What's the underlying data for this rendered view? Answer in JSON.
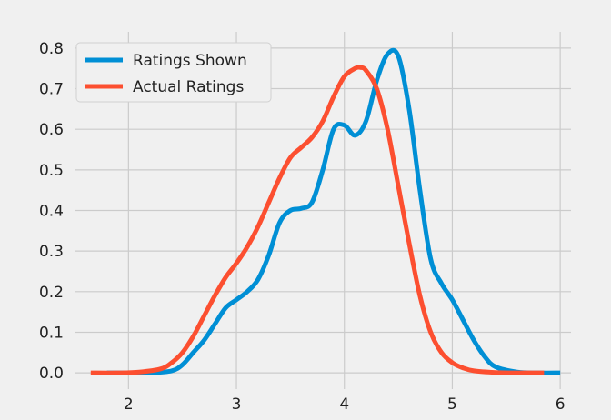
{
  "chart_data": {
    "type": "line",
    "title": "",
    "xlabel": "",
    "ylabel": "",
    "xlim": [
      1.5,
      6.1
    ],
    "ylim": [
      -0.04,
      0.84
    ],
    "xticks": [
      2,
      3,
      4,
      5,
      6
    ],
    "yticks": [
      0.0,
      0.1,
      0.2,
      0.3,
      0.4,
      0.5,
      0.6,
      0.7,
      0.8
    ],
    "grid": true,
    "legend_position": "top-left",
    "series": [
      {
        "name": "Ratings Shown",
        "color": "#008fd5",
        "x": [
          1.8,
          2.0,
          2.2,
          2.4,
          2.5,
          2.6,
          2.7,
          2.8,
          2.9,
          3.0,
          3.1,
          3.2,
          3.3,
          3.4,
          3.5,
          3.6,
          3.7,
          3.8,
          3.9,
          4.0,
          4.1,
          4.2,
          4.3,
          4.4,
          4.5,
          4.6,
          4.7,
          4.8,
          4.9,
          5.0,
          5.1,
          5.2,
          5.3,
          5.4,
          5.6,
          5.8,
          6.0
        ],
        "y": [
          0.0,
          0.0,
          0.0,
          0.005,
          0.02,
          0.05,
          0.08,
          0.12,
          0.16,
          0.18,
          0.2,
          0.23,
          0.29,
          0.37,
          0.4,
          0.405,
          0.42,
          0.5,
          0.6,
          0.61,
          0.585,
          0.62,
          0.72,
          0.785,
          0.78,
          0.65,
          0.45,
          0.28,
          0.22,
          0.18,
          0.13,
          0.08,
          0.04,
          0.015,
          0.002,
          0.0,
          0.0
        ]
      },
      {
        "name": "Actual Ratings",
        "color": "#fc4f30",
        "x": [
          1.65,
          1.9,
          2.1,
          2.3,
          2.4,
          2.5,
          2.6,
          2.7,
          2.8,
          2.9,
          3.0,
          3.1,
          3.2,
          3.3,
          3.4,
          3.5,
          3.6,
          3.7,
          3.8,
          3.9,
          4.0,
          4.1,
          4.15,
          4.2,
          4.3,
          4.4,
          4.5,
          4.6,
          4.7,
          4.8,
          4.9,
          5.0,
          5.1,
          5.2,
          5.4,
          5.6,
          5.85
        ],
        "y": [
          0.0,
          0.0,
          0.002,
          0.01,
          0.025,
          0.05,
          0.09,
          0.14,
          0.19,
          0.235,
          0.27,
          0.31,
          0.36,
          0.42,
          0.48,
          0.53,
          0.555,
          0.58,
          0.62,
          0.68,
          0.73,
          0.75,
          0.752,
          0.745,
          0.7,
          0.6,
          0.46,
          0.32,
          0.19,
          0.1,
          0.05,
          0.025,
          0.012,
          0.005,
          0.001,
          0.0,
          0.0
        ]
      }
    ]
  }
}
